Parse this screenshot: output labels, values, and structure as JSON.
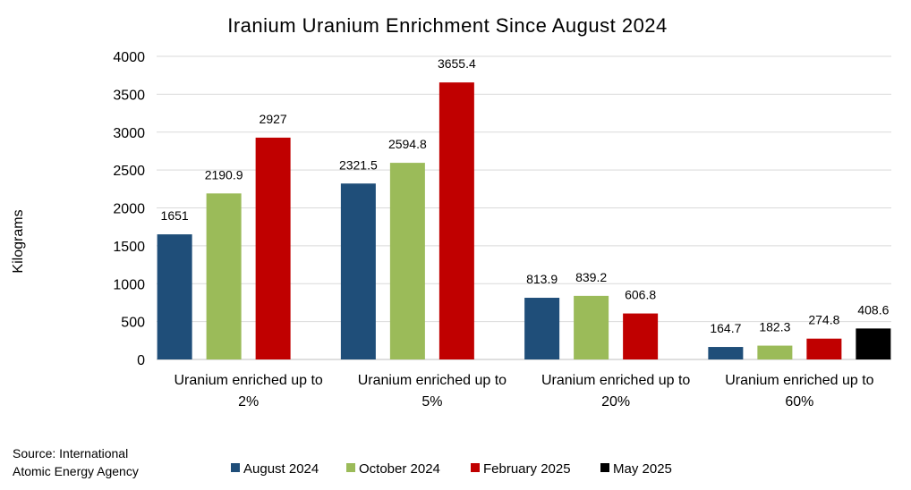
{
  "chart_data": {
    "type": "bar",
    "title": "Iranium Uranium Enrichment Since August 2024",
    "ylabel": "Kilograms",
    "xlabel": "",
    "ylim": [
      0,
      4000
    ],
    "yticks": [
      0,
      500,
      1000,
      1500,
      2000,
      2500,
      3000,
      3500,
      4000
    ],
    "grid": true,
    "legend_position": "bottom",
    "categories": [
      [
        "Uranium enriched up to",
        "2%"
      ],
      [
        "Uranium enriched up to",
        "5%"
      ],
      [
        "Uranium enriched up to",
        "20%"
      ],
      [
        "Uranium enriched up to",
        "60%"
      ]
    ],
    "series": [
      {
        "name": "August 2024",
        "color": "#1f4e79",
        "values": [
          1651,
          2321.5,
          813.9,
          164.7
        ],
        "labels": [
          "1651",
          "2321.5",
          "813.9",
          "164.7"
        ]
      },
      {
        "name": "October 2024",
        "color": "#9bbb59",
        "values": [
          2190.9,
          2594.8,
          839.2,
          182.3
        ],
        "labels": [
          "2190.9",
          "2594.8",
          "839.2",
          "182.3"
        ]
      },
      {
        "name": "February 2025",
        "color": "#c00000",
        "values": [
          2927,
          3655.4,
          606.8,
          274.8
        ],
        "labels": [
          "2927",
          "3655.4",
          "606.8",
          "274.8"
        ]
      },
      {
        "name": "May 2025",
        "color": "#000000",
        "values": [
          null,
          null,
          null,
          408.6
        ],
        "labels": [
          "",
          "",
          "",
          "408.6"
        ]
      }
    ]
  },
  "source_text": {
    "line1": "Source: International",
    "line2": "Atomic Energy Agency"
  }
}
